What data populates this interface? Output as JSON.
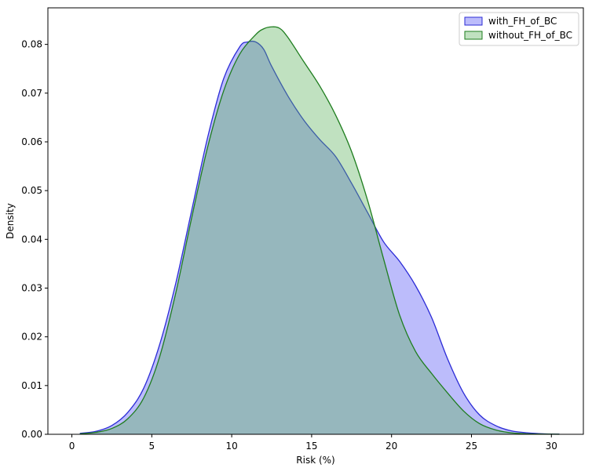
{
  "chart_data": {
    "type": "area",
    "xlabel": "Risk (%)",
    "ylabel": "Density",
    "xlim": [
      -1.5,
      32
    ],
    "ylim": [
      0,
      0.0875
    ],
    "xticks": [
      0,
      5,
      10,
      15,
      20,
      25,
      30
    ],
    "yticks": [
      0.0,
      0.01,
      0.02,
      0.03,
      0.04,
      0.05,
      0.06,
      0.07,
      0.08
    ],
    "ytick_labels": [
      "0.00",
      "0.01",
      "0.02",
      "0.03",
      "0.04",
      "0.05",
      "0.06",
      "0.07",
      "0.08"
    ],
    "grid": false,
    "legend_position": "top-right",
    "series": [
      {
        "name": "with_FH_of_BC",
        "line_color": "#2b2bd6",
        "fill_color": "rgba(80, 80, 245, 0.38)",
        "x": [
          0.5,
          1.5,
          2.5,
          3.5,
          4.5,
          5.5,
          6.5,
          7.5,
          8.5,
          9.5,
          10.5,
          11.0,
          11.5,
          12.0,
          12.5,
          13.5,
          14.5,
          15.5,
          16.5,
          17.5,
          18.5,
          19.5,
          20.5,
          21.5,
          22.5,
          23.5,
          24.5,
          25.5,
          26.5,
          27.5,
          28.5,
          29.5,
          30.5
        ],
        "y": [
          0.0002,
          0.0006,
          0.0018,
          0.0045,
          0.0095,
          0.0185,
          0.031,
          0.046,
          0.061,
          0.073,
          0.0795,
          0.0805,
          0.0805,
          0.079,
          0.0755,
          0.0695,
          0.0645,
          0.0605,
          0.057,
          0.0515,
          0.0455,
          0.0395,
          0.0355,
          0.0305,
          0.024,
          0.0155,
          0.0085,
          0.004,
          0.0018,
          0.0007,
          0.0003,
          0.0001,
          3e-05
        ]
      },
      {
        "name": "without_FH_of_BC",
        "line_color": "#1e7d1e",
        "fill_color": "rgba(90, 175, 90, 0.38)",
        "x": [
          0.5,
          1.5,
          2.5,
          3.5,
          4.5,
          5.5,
          6.5,
          7.5,
          8.5,
          9.5,
          10.5,
          11.5,
          12.0,
          12.5,
          13.0,
          13.5,
          14.5,
          15.5,
          16.5,
          17.5,
          18.5,
          19.5,
          20.5,
          21.5,
          22.5,
          23.5,
          24.5,
          25.5,
          26.5,
          27.5,
          28.5,
          29.5,
          30.5
        ],
        "y": [
          0.0001,
          0.0004,
          0.0012,
          0.0032,
          0.0075,
          0.016,
          0.029,
          0.0445,
          0.059,
          0.0705,
          0.078,
          0.082,
          0.0832,
          0.0836,
          0.0833,
          0.0815,
          0.0765,
          0.0715,
          0.0655,
          0.058,
          0.048,
          0.036,
          0.0245,
          0.017,
          0.0125,
          0.0085,
          0.0048,
          0.0022,
          0.0009,
          0.0003,
          0.0001,
          4e-05,
          1e-05
        ]
      }
    ]
  }
}
